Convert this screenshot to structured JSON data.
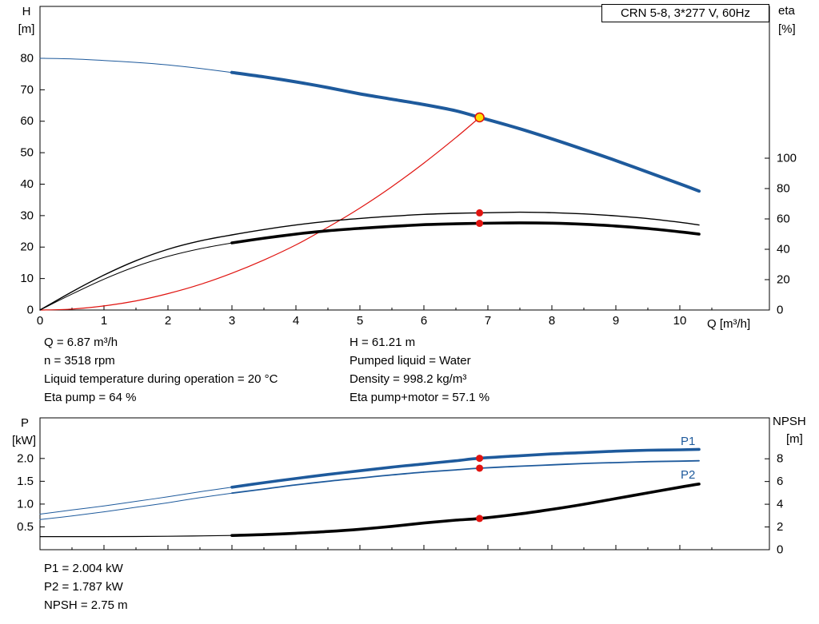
{
  "colors": {
    "blue": "#1e5a9c",
    "red": "#e01410",
    "black": "#000000",
    "yellow": "#ffdf00",
    "axis": "#000000"
  },
  "info_top_left": {
    "lines": [
      "Q = 6.87 m³/h",
      "n = 3518 rpm",
      "Liquid temperature during operation = 20 °C",
      "Eta pump = 64 %"
    ]
  },
  "info_top_right": {
    "lines": [
      "H = 61.21 m",
      "Pumped liquid = Water",
      "Density = 998.2 kg/m³",
      "Eta pump+motor = 57.1 %"
    ]
  },
  "info_bottom": {
    "lines": [
      "P1 = 2.004 kW",
      "P2 = 1.787 kW",
      "NPSH = 2.75 m"
    ]
  },
  "chart_data": [
    {
      "name": "hq-eta-chart",
      "type": "line",
      "title": "CRN 5-8, 3*277 V, 60Hz",
      "xlabel": "Q [m³/h]",
      "ylabel_left": "H",
      "ylabel_left_unit": "[m]",
      "ylabel_right": "eta",
      "ylabel_right_unit": "[%]",
      "xlim": [
        0,
        11.4
      ],
      "xticks": [
        0,
        1,
        2,
        3,
        4,
        5,
        6,
        7,
        8,
        9,
        10
      ],
      "show_x_labels": true,
      "ylim_left": [
        0,
        96.5
      ],
      "yticks_left": [
        0,
        10,
        20,
        30,
        40,
        50,
        60,
        70,
        80
      ],
      "ylim_right": [
        0,
        200
      ],
      "yticks_right": [
        0,
        20,
        40,
        60,
        80,
        100
      ],
      "grid": false,
      "series": [
        {
          "name": "pump-curve-lead",
          "axis": "left",
          "color": "blue",
          "width": 1,
          "points": [
            [
              0,
              80
            ],
            [
              0.5,
              79.8
            ],
            [
              1,
              79.3
            ],
            [
              1.5,
              78.7
            ],
            [
              2,
              77.9
            ],
            [
              2.5,
              76.8
            ],
            [
              3,
              75.5
            ]
          ]
        },
        {
          "name": "pump-curve",
          "axis": "left",
          "color": "blue",
          "width": 4,
          "points": [
            [
              3,
              75.5
            ],
            [
              3.5,
              74.1
            ],
            [
              4,
              72.5
            ],
            [
              4.5,
              70.7
            ],
            [
              5,
              68.7
            ],
            [
              5.5,
              67.0
            ],
            [
              6,
              65.3
            ],
            [
              6.5,
              63.3
            ],
            [
              6.87,
              61.21
            ],
            [
              7,
              60.5
            ],
            [
              7.5,
              57.6
            ],
            [
              8,
              54.4
            ],
            [
              8.5,
              51.0
            ],
            [
              9,
              47.5
            ],
            [
              9.5,
              43.8
            ],
            [
              10,
              40.1
            ],
            [
              10.3,
              37.8
            ]
          ]
        },
        {
          "name": "system-curve",
          "axis": "left",
          "color": "red",
          "width": 1.2,
          "points": [
            [
              0,
              0
            ],
            [
              0.5,
              0.3
            ],
            [
              1,
              1.3
            ],
            [
              1.5,
              2.9
            ],
            [
              2,
              5.2
            ],
            [
              2.5,
              8.1
            ],
            [
              3,
              11.7
            ],
            [
              3.5,
              15.9
            ],
            [
              4,
              20.7
            ],
            [
              4.5,
              26.3
            ],
            [
              5,
              32.4
            ],
            [
              5.5,
              39.2
            ],
            [
              6,
              46.7
            ],
            [
              6.5,
              54.8
            ],
            [
              6.87,
              61.21
            ]
          ]
        },
        {
          "name": "eta-pump-curve",
          "axis": "right",
          "color": "black",
          "width": 1.4,
          "points": [
            [
              0,
              0
            ],
            [
              0.5,
              12
            ],
            [
              1,
              23
            ],
            [
              1.5,
              32.5
            ],
            [
              2,
              40
            ],
            [
              2.5,
              45.5
            ],
            [
              3,
              49.5
            ],
            [
              3.5,
              53
            ],
            [
              4,
              56
            ],
            [
              4.5,
              58.5
            ],
            [
              5,
              60.3
            ],
            [
              5.5,
              61.8
            ],
            [
              6,
              63
            ],
            [
              6.5,
              63.7
            ],
            [
              6.87,
              64
            ],
            [
              7.5,
              64.4
            ],
            [
              8,
              64.1
            ],
            [
              8.5,
              63.3
            ],
            [
              9,
              62
            ],
            [
              9.5,
              60.2
            ],
            [
              10,
              57.8
            ],
            [
              10.3,
              56
            ]
          ]
        },
        {
          "name": "eta-total-curve-lead",
          "axis": "right",
          "color": "black",
          "width": 1,
          "points": [
            [
              0,
              0
            ],
            [
              0.5,
              10.5
            ],
            [
              1,
              20.3
            ],
            [
              1.5,
              28.7
            ],
            [
              2,
              35.3
            ],
            [
              2.5,
              40.3
            ],
            [
              3,
              44.2
            ]
          ]
        },
        {
          "name": "eta-total-curve",
          "axis": "right",
          "color": "black",
          "width": 3.6,
          "points": [
            [
              3,
              44.2
            ],
            [
              3.5,
              47.3
            ],
            [
              4,
              50
            ],
            [
              4.5,
              52.2
            ],
            [
              5,
              53.8
            ],
            [
              5.5,
              55.1
            ],
            [
              6,
              56.2
            ],
            [
              6.5,
              56.8
            ],
            [
              6.87,
              57.1
            ],
            [
              7.5,
              57.4
            ],
            [
              8,
              57.2
            ],
            [
              8.5,
              56.5
            ],
            [
              9,
              55.3
            ],
            [
              9.5,
              53.7
            ],
            [
              10,
              51.5
            ],
            [
              10.3,
              50
            ]
          ]
        }
      ],
      "markers": [
        {
          "name": "duty-point",
          "x": 6.87,
          "value": 61.21,
          "axis": "left",
          "style": "duty"
        },
        {
          "name": "eta-pump-point",
          "x": 6.87,
          "value": 64,
          "axis": "right",
          "style": "dot"
        },
        {
          "name": "eta-total-point",
          "x": 6.87,
          "value": 57.1,
          "axis": "right",
          "style": "dot"
        }
      ]
    },
    {
      "name": "power-npsh-chart",
      "type": "line",
      "title": "",
      "xlabel": "",
      "ylabel_left": "P",
      "ylabel_left_unit": "[kW]",
      "ylabel_right": "NPSH",
      "ylabel_right_unit": "[m]",
      "xlim": [
        0,
        11.4
      ],
      "xticks": [
        0,
        1,
        2,
        3,
        4,
        5,
        6,
        7,
        8,
        9,
        10
      ],
      "show_x_labels": false,
      "ylim_left": [
        0,
        2.89
      ],
      "yticks_left": [
        0.5,
        1,
        1.5,
        2
      ],
      "yticks_left_labels": [
        "0.5",
        "1.0",
        "1.5",
        "2.0"
      ],
      "ylim_right": [
        0,
        11.6
      ],
      "yticks_right": [
        0,
        2,
        4,
        6,
        8
      ],
      "grid": false,
      "series": [
        {
          "name": "p1-curve-lead",
          "axis": "left",
          "color": "blue",
          "width": 1,
          "points": [
            [
              0,
              0.78
            ],
            [
              0.5,
              0.87
            ],
            [
              1,
              0.96
            ],
            [
              1.5,
              1.06
            ],
            [
              2,
              1.16
            ],
            [
              2.5,
              1.27
            ],
            [
              3,
              1.37
            ]
          ]
        },
        {
          "name": "p1-curve",
          "label": "P1",
          "axis": "left",
          "color": "blue",
          "width": 3.6,
          "points": [
            [
              3,
              1.37
            ],
            [
              3.5,
              1.47
            ],
            [
              4,
              1.56
            ],
            [
              4.5,
              1.65
            ],
            [
              5,
              1.73
            ],
            [
              5.5,
              1.81
            ],
            [
              6,
              1.88
            ],
            [
              6.5,
              1.95
            ],
            [
              6.87,
              2.004
            ],
            [
              7.5,
              2.06
            ],
            [
              8,
              2.1
            ],
            [
              8.5,
              2.13
            ],
            [
              9,
              2.16
            ],
            [
              9.5,
              2.18
            ],
            [
              10,
              2.19
            ],
            [
              10.3,
              2.2
            ]
          ]
        },
        {
          "name": "p2-curve-lead",
          "axis": "left",
          "color": "blue",
          "width": 1,
          "points": [
            [
              0,
              0.66
            ],
            [
              0.5,
              0.74
            ],
            [
              1,
              0.83
            ],
            [
              1.5,
              0.93
            ],
            [
              2,
              1.03
            ],
            [
              2.5,
              1.14
            ],
            [
              3,
              1.24
            ]
          ]
        },
        {
          "name": "p2-curve",
          "label": "P2",
          "axis": "left",
          "color": "blue",
          "width": 1.8,
          "points": [
            [
              3,
              1.24
            ],
            [
              3.5,
              1.33
            ],
            [
              4,
              1.42
            ],
            [
              4.5,
              1.5
            ],
            [
              5,
              1.57
            ],
            [
              5.5,
              1.64
            ],
            [
              6,
              1.7
            ],
            [
              6.5,
              1.75
            ],
            [
              6.87,
              1.787
            ],
            [
              7.5,
              1.83
            ],
            [
              8,
              1.86
            ],
            [
              8.5,
              1.89
            ],
            [
              9,
              1.91
            ],
            [
              9.5,
              1.93
            ],
            [
              10,
              1.94
            ],
            [
              10.3,
              1.95
            ]
          ]
        },
        {
          "name": "npsh-curve-lead",
          "axis": "right",
          "color": "black",
          "width": 1.2,
          "points": [
            [
              0,
              1.15
            ],
            [
              1,
              1.15
            ],
            [
              2,
              1.18
            ],
            [
              3,
              1.25
            ]
          ]
        },
        {
          "name": "npsh-curve",
          "axis": "right",
          "color": "black",
          "width": 3.6,
          "points": [
            [
              3,
              1.25
            ],
            [
              3.5,
              1.33
            ],
            [
              4,
              1.45
            ],
            [
              4.5,
              1.6
            ],
            [
              5,
              1.8
            ],
            [
              5.5,
              2.05
            ],
            [
              6,
              2.35
            ],
            [
              6.5,
              2.6
            ],
            [
              6.87,
              2.75
            ],
            [
              7.5,
              3.15
            ],
            [
              8,
              3.55
            ],
            [
              8.5,
              4.0
            ],
            [
              9,
              4.5
            ],
            [
              9.5,
              5.0
            ],
            [
              10,
              5.5
            ],
            [
              10.3,
              5.78
            ]
          ]
        }
      ],
      "markers": [
        {
          "name": "p1-point",
          "x": 6.87,
          "value": 2.004,
          "axis": "left",
          "style": "dot"
        },
        {
          "name": "p2-point",
          "x": 6.87,
          "value": 1.787,
          "axis": "left",
          "style": "dot"
        },
        {
          "name": "npsh-point",
          "x": 6.87,
          "value": 2.75,
          "axis": "right",
          "style": "dot"
        }
      ]
    }
  ]
}
